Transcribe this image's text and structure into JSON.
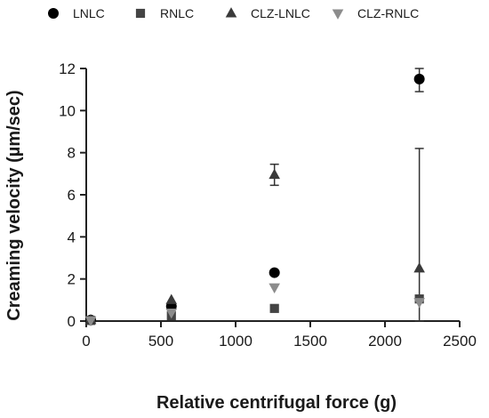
{
  "chart_data": {
    "type": "scatter",
    "title": "",
    "xlabel": "Relative centrifugal force (g)",
    "ylabel": "Creaming velocity (µm/sec)",
    "xlim": [
      0,
      2500
    ],
    "ylim": [
      0,
      12
    ],
    "x_ticks": [
      0,
      500,
      1000,
      1500,
      2000,
      2500
    ],
    "y_ticks": [
      0,
      2,
      4,
      6,
      8,
      10,
      12
    ],
    "grid": false,
    "legend_position": "top",
    "series": [
      {
        "name": "LNLC",
        "marker": "circle",
        "color": "#000000",
        "points": [
          {
            "x": 30,
            "y": 0.05,
            "err": 0
          },
          {
            "x": 570,
            "y": 0.7,
            "err": 0
          },
          {
            "x": 1260,
            "y": 2.3,
            "err": 0
          },
          {
            "x": 2230,
            "y": 11.5,
            "err": 0.6
          }
        ]
      },
      {
        "name": "RNLC",
        "marker": "square",
        "color": "#444444",
        "points": [
          {
            "x": 30,
            "y": 0.03,
            "err": 0
          },
          {
            "x": 570,
            "y": 0.25,
            "err": 0
          },
          {
            "x": 1260,
            "y": 0.6,
            "err": 0
          },
          {
            "x": 2230,
            "y": 1.05,
            "err": 0
          }
        ]
      },
      {
        "name": "CLZ-LNLC",
        "marker": "triangle-up",
        "color": "#3a3a3a",
        "points": [
          {
            "x": 30,
            "y": 0.05,
            "err": 0
          },
          {
            "x": 570,
            "y": 1.0,
            "err": 0
          },
          {
            "x": 1260,
            "y": 6.95,
            "err": 0.5
          },
          {
            "x": 2230,
            "y": 2.5,
            "err": 5.7
          }
        ]
      },
      {
        "name": "CLZ-RNLC",
        "marker": "triangle-down",
        "color": "#8c8c8c",
        "points": [
          {
            "x": 30,
            "y": 0.03,
            "err": 0
          },
          {
            "x": 570,
            "y": 0.4,
            "err": 0
          },
          {
            "x": 1260,
            "y": 1.6,
            "err": 0
          },
          {
            "x": 2230,
            "y": 0.9,
            "err": 0
          }
        ]
      }
    ]
  }
}
